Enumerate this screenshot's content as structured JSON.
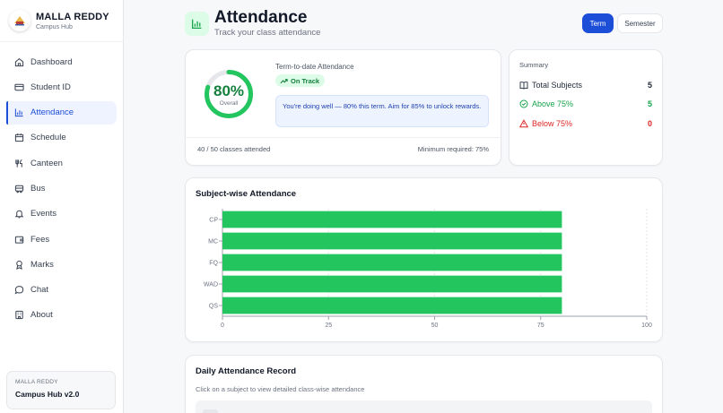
{
  "sidebar": {
    "brand_title": "MALLA REDDY",
    "brand_subtitle": "Campus Hub",
    "items": [
      {
        "label": "Dashboard",
        "icon": "home-icon"
      },
      {
        "label": "Student ID",
        "icon": "id-card-icon"
      },
      {
        "label": "Attendance",
        "icon": "bar-chart-icon",
        "active": true
      },
      {
        "label": "Schedule",
        "icon": "calendar-icon"
      },
      {
        "label": "Canteen",
        "icon": "utensils-icon"
      },
      {
        "label": "Bus",
        "icon": "bus-icon"
      },
      {
        "label": "Events",
        "icon": "bell-icon"
      },
      {
        "label": "Fees",
        "icon": "wallet-icon"
      },
      {
        "label": "Marks",
        "icon": "award-icon"
      },
      {
        "label": "Chat",
        "icon": "chat-icon"
      },
      {
        "label": "About",
        "icon": "building-icon"
      }
    ],
    "footer_small": "MALLA REDDY",
    "footer_big": "Campus Hub v2.0"
  },
  "header": {
    "title": "Attendance",
    "subtitle": "Track your class attendance",
    "tabs": [
      {
        "label": "Term",
        "active": true
      },
      {
        "label": "Semester",
        "active": false
      }
    ]
  },
  "overview": {
    "percent_label": "80%",
    "percent_value": 80,
    "overall_label": "Overall",
    "term_label": "Term-to-date Attendance",
    "status": "On Track",
    "message": "You're doing well — 80% this term. Aim for 85% to unlock rewards.",
    "attended": "40 / 50 classes attended",
    "minimum": "Minimum required: 75%"
  },
  "summary": {
    "title": "Summary",
    "rows": [
      {
        "label": "Total Subjects",
        "value": "5",
        "icon": "book-icon"
      },
      {
        "label": "Above 75%",
        "value": "5",
        "icon": "check-circle-icon"
      },
      {
        "label": "Below 75%",
        "value": "0",
        "icon": "alert-triangle-icon"
      }
    ]
  },
  "chart_data": {
    "type": "bar",
    "orientation": "horizontal",
    "title": "Subject-wise Attendance",
    "categories": [
      "CP",
      "MC",
      "FQ",
      "WAD",
      "QS"
    ],
    "values": [
      80,
      80,
      80,
      80,
      80
    ],
    "xlim": [
      0,
      100
    ],
    "xticks": [
      0,
      25,
      50,
      75,
      100
    ],
    "bar_color": "#22c55e",
    "grid": true
  },
  "daily": {
    "title": "Daily Attendance Record",
    "subtitle": "Click on a subject to view detailed class-wise attendance"
  },
  "colors": {
    "accent": "#1d4ed8",
    "success": "#16a34a",
    "danger": "#dc2626"
  }
}
